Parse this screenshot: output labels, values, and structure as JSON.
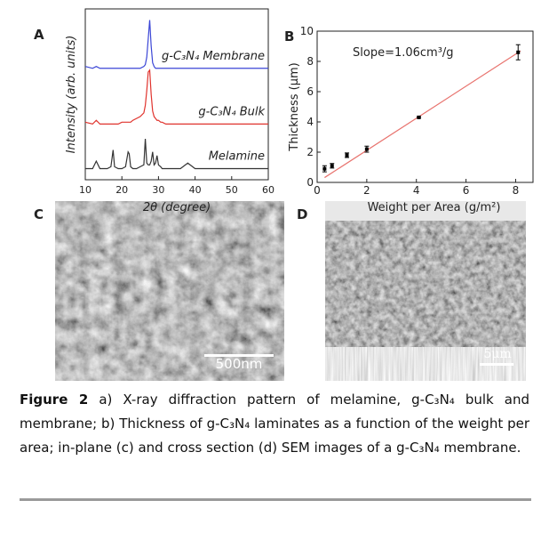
{
  "chart_data": [
    {
      "type": "line",
      "xlabel": "2θ (degree)",
      "ylabel": "Intensity (arb. units)",
      "x": [
        10,
        12,
        13,
        14,
        15,
        16,
        17,
        17.6,
        18,
        19,
        20,
        21,
        21.7,
        22,
        22.4,
        23,
        24,
        25,
        26,
        26.4,
        26.8,
        27.2,
        27.6,
        28,
        28.4,
        28.8,
        29.2,
        29.6,
        30,
        30.6,
        31,
        32,
        34,
        36,
        38,
        40,
        42,
        44,
        46,
        48,
        50,
        52,
        54,
        56,
        58,
        60
      ],
      "xlim": [
        10,
        60
      ],
      "xticks": [
        10,
        20,
        30,
        40,
        50,
        60
      ],
      "ylim": [
        0,
        9.2
      ],
      "series": [
        {
          "name": "g-C₃N₄ Membrane",
          "color": "#3b46d6",
          "values": [
            6.1,
            6.0,
            6.1,
            6.0,
            6.0,
            6.0,
            6.0,
            6.0,
            6.0,
            6.0,
            6.0,
            6.0,
            6.0,
            6.0,
            6.0,
            6.0,
            6.0,
            6.0,
            6.1,
            6.2,
            6.6,
            7.6,
            8.6,
            7.2,
            6.3,
            6.1,
            6.0,
            6.0,
            6.0,
            6.0,
            6.0,
            6.0,
            6.0,
            6.0,
            6.0,
            6.0,
            6.0,
            6.0,
            6.0,
            6.0,
            6.0,
            6.0,
            6.0,
            6.0,
            6.0,
            6.0
          ]
        },
        {
          "name": "g-C₃N₄ Bulk",
          "color": "#e0332d",
          "values": [
            3.1,
            3.0,
            3.2,
            3.0,
            3.0,
            3.0,
            3.0,
            3.0,
            3.0,
            3.0,
            3.1,
            3.1,
            3.1,
            3.1,
            3.1,
            3.2,
            3.3,
            3.4,
            3.6,
            4.0,
            4.8,
            5.8,
            5.9,
            4.6,
            3.7,
            3.4,
            3.3,
            3.2,
            3.2,
            3.1,
            3.1,
            3.0,
            3.0,
            3.0,
            3.0,
            3.0,
            3.0,
            3.0,
            3.0,
            3.0,
            3.0,
            3.0,
            3.0,
            3.0,
            3.0,
            3.0
          ]
        },
        {
          "name": "Melamine",
          "color": "#333333",
          "values": [
            0.6,
            0.6,
            1.0,
            0.6,
            0.6,
            0.6,
            0.7,
            1.6,
            0.7,
            0.6,
            0.6,
            0.7,
            1.5,
            1.4,
            0.7,
            0.6,
            0.6,
            0.7,
            0.8,
            2.2,
            0.9,
            0.8,
            0.8,
            1.0,
            1.5,
            0.8,
            0.9,
            1.3,
            0.8,
            0.7,
            0.6,
            0.6,
            0.6,
            0.6,
            0.9,
            0.6,
            0.6,
            0.6,
            0.6,
            0.6,
            0.6,
            0.6,
            0.6,
            0.6,
            0.6,
            0.6
          ]
        }
      ]
    },
    {
      "type": "scatter",
      "xlabel": "Weight per Area (g/m²)",
      "ylabel": "Thickness (μm)",
      "annotation": "Slope=1.06cm³/g",
      "x": [
        0.3,
        0.6,
        1.2,
        2.0,
        4.1,
        8.1
      ],
      "values": [
        0.9,
        1.1,
        1.8,
        2.2,
        4.3,
        8.6
      ],
      "errors": [
        0.2,
        0.15,
        0.15,
        0.2,
        0.05,
        0.5
      ],
      "color": "#000000",
      "fit": {
        "x": [
          0.3,
          8.2
        ],
        "values": [
          0.32,
          8.69
        ],
        "color": "#e8736e"
      },
      "xlim": [
        0,
        8.7
      ],
      "xticks": [
        0,
        2,
        4,
        6,
        8
      ],
      "ylim": [
        0,
        10
      ],
      "yticks": [
        0,
        2,
        4,
        6,
        8,
        10
      ]
    }
  ],
  "panels": {
    "labels": [
      "A",
      "B",
      "C",
      "D"
    ],
    "scale_bars": [
      "500nm",
      "5μm"
    ]
  },
  "caption": {
    "label": "Figure 2",
    "text": "a) X-ray diffraction pattern of melamine, g-C₃N₄ bulk and membrane; b) Thickness of g-C₃N₄ laminates as a function of the weight per area; in-plane (c) and cross section (d) SEM images of a g-C₃N₄ membrane."
  }
}
